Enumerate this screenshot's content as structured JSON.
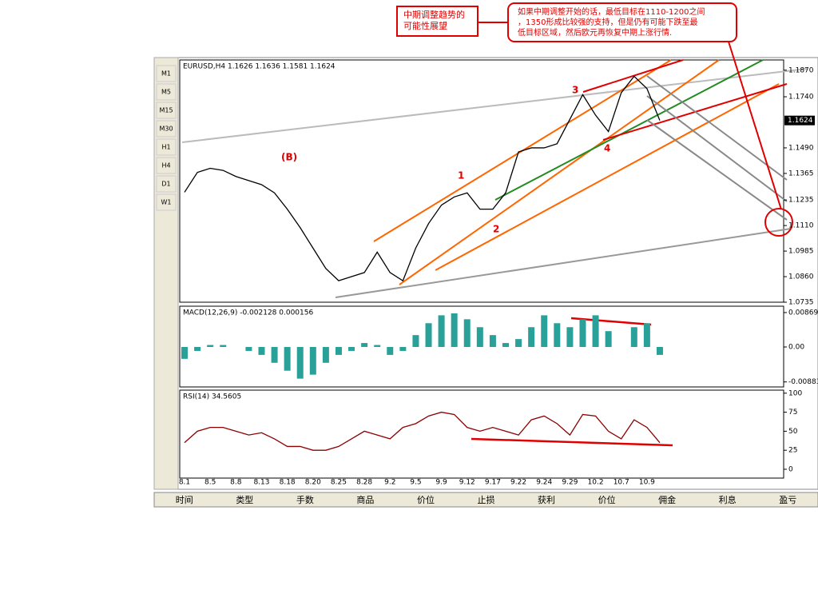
{
  "annotations": {
    "note_left": [
      "中期调整趋势的",
      "可能性展望"
    ],
    "note_right": [
      "如果中期调整开始的话，最低目标在1110-1200之间",
      "，1350形成比较强的支持，但是仍有可能下跌至最",
      "低目标区域，然后欧元再恢复中期上涨行情."
    ],
    "waves": [
      "(B)",
      "1",
      "2",
      "3",
      "4"
    ]
  },
  "toolbar": [
    "M1",
    "M5",
    "M15",
    "M30",
    "H1",
    "H4",
    "D1",
    "W1"
  ],
  "tabs": [
    "时间",
    "类型",
    "手数",
    "商品",
    "价位",
    "止损",
    "获利",
    "价位",
    "佣金",
    "利息",
    "盈亏"
  ],
  "chart_data": [
    {
      "type": "line",
      "title": "EURUSD,H4  1.1626  1.1636  1.1581  1.1624",
      "color": "#000000",
      "categories": [
        "8.1",
        null,
        "8.5",
        null,
        "8.8",
        null,
        "8.13",
        null,
        "8.18",
        null,
        "8.20",
        null,
        "8.25",
        null,
        "8.28",
        null,
        "9.2",
        null,
        "9.5",
        null,
        "9.9",
        null,
        "9.12",
        null,
        "9.17",
        null,
        "9.22",
        null,
        "9.24",
        null,
        "9.29",
        null,
        "10.2",
        null,
        "10.7",
        null,
        "10.9",
        null
      ],
      "values": [
        1.1273,
        1.137,
        1.139,
        1.138,
        1.135,
        1.133,
        1.131,
        1.127,
        1.119,
        1.11,
        1.1,
        1.09,
        1.084,
        1.086,
        1.088,
        1.098,
        1.088,
        1.084,
        1.1,
        1.112,
        1.121,
        1.125,
        1.127,
        1.119,
        1.119,
        1.127,
        1.147,
        1.149,
        1.149,
        1.151,
        1.163,
        1.175,
        1.165,
        1.157,
        1.176,
        1.184,
        1.178,
        1.1624
      ],
      "current_price": 1.1624,
      "ylim": [
        1.0735,
        1.192
      ],
      "yticks": [
        {
          "value": 1.187,
          "label": "1.1870"
        },
        {
          "value": 1.174,
          "label": "1.1740"
        },
        {
          "value": 1.149,
          "label": "1.1490"
        },
        1.1365,
        1.1235,
        {
          "value": 1.111,
          "label": "1.1110"
        },
        1.0985,
        {
          "value": 1.086,
          "label": "1.0860"
        },
        1.0735
      ]
    },
    {
      "type": "bar",
      "title": "MACD(12,26,9)  -0.002128  0.000156",
      "color": "#2aa198",
      "values": [
        -0.003,
        -0.001,
        0.0005,
        0.0005,
        0,
        -0.001,
        -0.002,
        -0.004,
        -0.006,
        -0.008,
        -0.007,
        -0.004,
        -0.002,
        -0.001,
        0.001,
        0.0005,
        -0.002,
        -0.001,
        0.003,
        0.006,
        0.008,
        0.0085,
        0.007,
        0.005,
        0.003,
        0.001,
        0.002,
        0.005,
        0.008,
        0.006,
        0.005,
        0.007,
        0.008,
        0.004,
        0,
        0.005,
        0.006,
        -0.002
      ],
      "ylim": [
        -0.0101,
        0.0103
      ],
      "yticks": [
        0.00869,
        {
          "value": 0,
          "label": "0.00"
        },
        -0.00883
      ]
    },
    {
      "type": "line",
      "title": "RSI(14)  34.5605",
      "color": "#8b0000",
      "values": [
        35,
        50,
        55,
        55,
        50,
        45,
        48,
        40,
        30,
        30,
        25,
        25,
        30,
        40,
        50,
        45,
        40,
        55,
        60,
        70,
        75,
        72,
        55,
        50,
        55,
        50,
        45,
        65,
        70,
        60,
        45,
        72,
        70,
        50,
        40,
        65,
        55,
        35
      ],
      "ylim": [
        -11.6,
        104
      ],
      "yticks": [
        100,
        75,
        50,
        25,
        0
      ]
    }
  ]
}
